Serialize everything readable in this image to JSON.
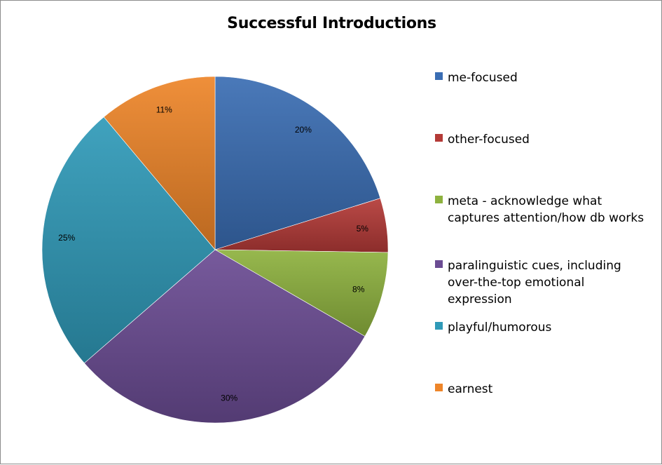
{
  "chart_data": {
    "type": "pie",
    "title": "Successful Introductions",
    "legend_position": "right",
    "slices": [
      {
        "label": "me-focused",
        "lines": [
          "me-focused"
        ],
        "value": 20,
        "value_label": "20%",
        "color": "#3a6db3"
      },
      {
        "label": "other-focused",
        "lines": [
          "other-focused"
        ],
        "value": 5,
        "value_label": "5%",
        "color": "#b43a37"
      },
      {
        "label": "meta - acknowledge what captures attention/how db works",
        "lines": [
          "meta - acknowledge what",
          "captures attention/how db works"
        ],
        "value": 8,
        "value_label": "8%",
        "color": "#8eb23f"
      },
      {
        "label": "paralinguistic cues, including over-the-top emotional expression",
        "lines": [
          "paralinguistic cues, including",
          "over-the-top emotional",
          "expression"
        ],
        "value": 30,
        "value_label": "30%",
        "color": "#6b4c93"
      },
      {
        "label": "playful/humorous",
        "lines": [
          "playful/humorous"
        ],
        "value": 25,
        "value_label": "25%",
        "color": "#2f9ab8"
      },
      {
        "label": "earnest",
        "lines": [
          "earnest"
        ],
        "value": 11,
        "value_label": "11%",
        "color": "#ee8529"
      }
    ]
  }
}
